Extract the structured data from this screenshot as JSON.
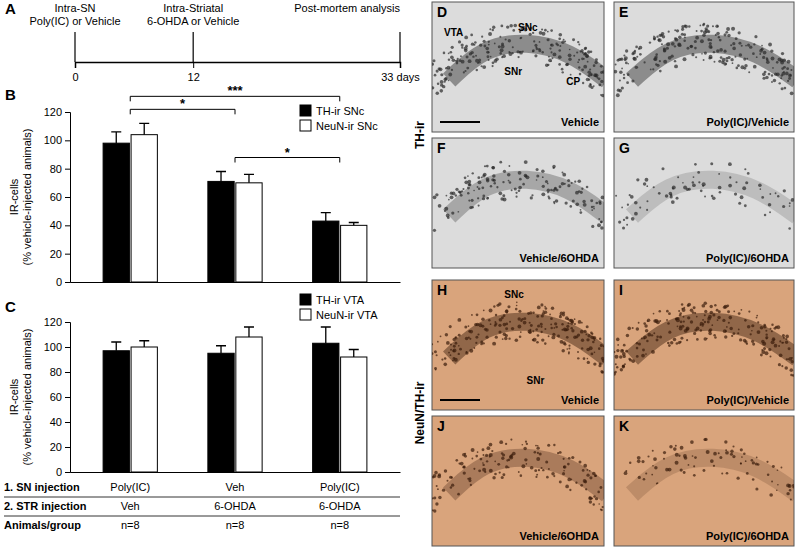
{
  "chart_data": [
    {
      "type": "bar",
      "title": "B",
      "ylabel": "IR-cells\n(% vehicle-injected animals)",
      "categories": [
        null,
        null,
        null
      ],
      "series": [
        {
          "name": "TH-ir SNc",
          "color": "#000000",
          "values": [
            98,
            71,
            43
          ],
          "errors": [
            8,
            7,
            6
          ]
        },
        {
          "name": "NeuN-ir SNc",
          "color": "#ffffff",
          "values": [
            104,
            70,
            40
          ],
          "errors": [
            8,
            6,
            2
          ]
        }
      ],
      "ylim": [
        0,
        120
      ],
      "yticks": [
        0,
        20,
        40,
        60,
        80,
        100,
        120
      ],
      "legend": "upper right",
      "annotations": [
        {
          "text": "***",
          "between": [
            0,
            2
          ]
        },
        {
          "text": "*",
          "between": [
            0,
            1
          ]
        },
        {
          "text": "*",
          "between": [
            1,
            2
          ]
        }
      ]
    },
    {
      "type": "bar",
      "title": "C",
      "ylabel": "IR-cells\n(% vehicle-injected animals)",
      "categories": [
        null,
        null,
        null
      ],
      "series": [
        {
          "name": "TH-ir VTA",
          "color": "#000000",
          "values": [
            97,
            95,
            103
          ],
          "errors": [
            7,
            6,
            13
          ]
        },
        {
          "name": "NeuN-ir VTA",
          "color": "#ffffff",
          "values": [
            100,
            108,
            92
          ],
          "errors": [
            5,
            8,
            6
          ]
        }
      ],
      "ylim": [
        0,
        120
      ],
      "yticks": [
        0,
        20,
        40,
        60,
        80,
        100,
        120
      ],
      "legend": "upper right"
    }
  ],
  "timeline": {
    "title": "A",
    "xlim": [
      0,
      33
    ],
    "xticks": [
      0,
      12,
      {
        "value": 33,
        "label": "33 days"
      }
    ],
    "events": [
      {
        "day": 0,
        "lines": [
          "Intra-SN",
          "Poly(IC) or Vehicle"
        ]
      },
      {
        "day": 12,
        "lines": [
          "Intra-Striatal",
          "6-OHDA or Vehicle"
        ]
      },
      {
        "day": 33,
        "lines": [
          "Post-mortem analysis"
        ]
      }
    ]
  },
  "table": {
    "rows": [
      {
        "label": "1. SN injection",
        "cells": [
          "Poly(IC)",
          "Veh",
          "Poly(IC)"
        ]
      },
      {
        "label": "2. STR injection",
        "cells": [
          "Veh",
          "6-OHDA",
          "6-OHDA"
        ]
      },
      {
        "label": "Animals/group",
        "cells": [
          "n=8",
          "n=8",
          "n=8"
        ]
      }
    ]
  },
  "micrographs": [
    {
      "label": "TH-ir",
      "panels": [
        {
          "title": "D",
          "condition": "Vehicle",
          "regions": [
            "VTA",
            "SNc",
            "SNr",
            "CP"
          ]
        },
        {
          "title": "E",
          "condition": "Poly(IC)/Vehicle"
        },
        {
          "title": "F",
          "condition": "Vehicle/6OHDA"
        },
        {
          "title": "G",
          "condition": "Poly(IC)/6OHDA"
        }
      ]
    },
    {
      "label": "NeuN/TH-ir",
      "panels": [
        {
          "title": "H",
          "condition": "Vehicle",
          "regions": [
            "SNc",
            "SNr"
          ]
        },
        {
          "title": "I",
          "condition": "Poly(IC)/Vehicle"
        },
        {
          "title": "J",
          "condition": "Vehicle/6OHDA"
        },
        {
          "title": "K",
          "condition": "Poly(IC)/6OHDA"
        }
      ]
    }
  ]
}
